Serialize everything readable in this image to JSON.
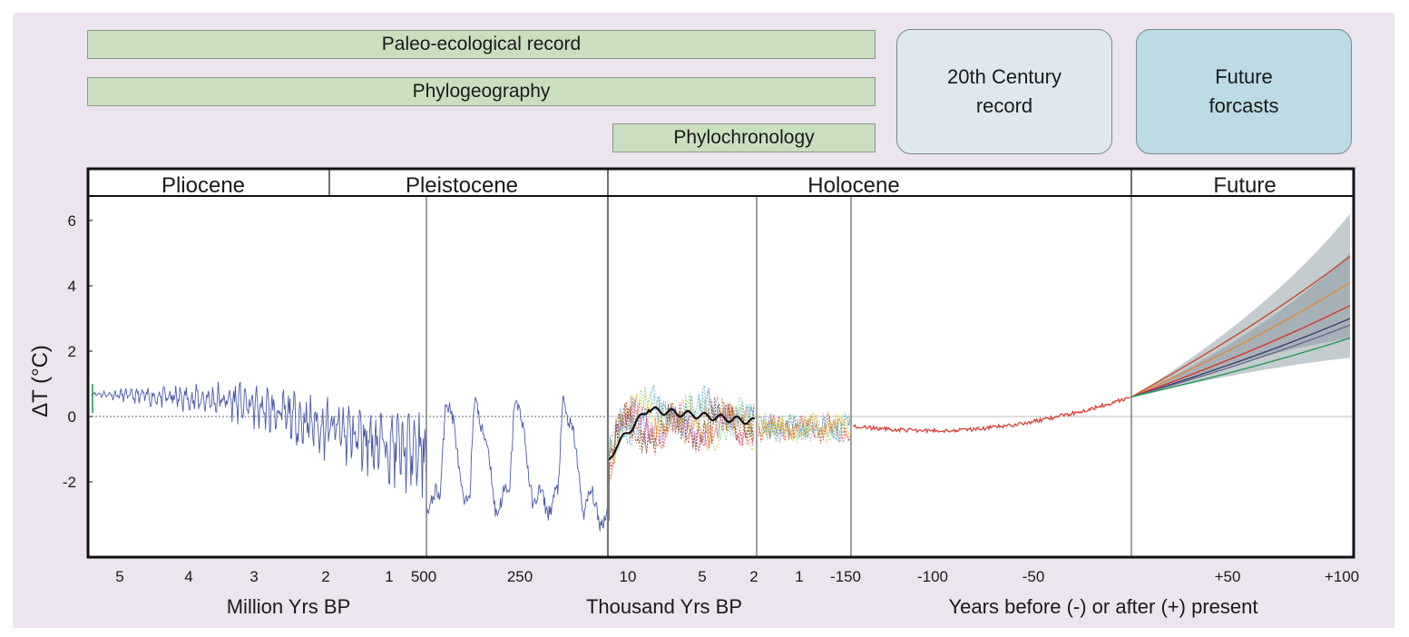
{
  "colors": {
    "panel_bg": "#ece4ee",
    "bar_fill": "#c9dfc0",
    "box20_fill": "#dde8ef",
    "boxfuture_fill": "#bcdbe3",
    "pliocene_series": "#4a5aa8",
    "holocene_recent": "#d9342b",
    "band_outer": "#c4ccd0",
    "band_inner": "#a6b1b7"
  },
  "methods": {
    "paleo": "Paleo-ecological record",
    "phylogeo": "Phylogeography",
    "phylochron": "Phylochronology"
  },
  "records": {
    "century": [
      "20th Century",
      "record"
    ],
    "future": [
      "Future",
      "forcasts"
    ]
  },
  "chart_data": {
    "type": "line",
    "ylabel": "ΔT (°C)",
    "ylim": [
      -4.5,
      6.5
    ],
    "yticks": [
      6,
      4,
      2,
      0,
      -2
    ],
    "epochs": [
      "Pliocene",
      "Pleistocene",
      "Holocene",
      "Future"
    ],
    "segments": [
      {
        "unit": "Million Yrs BP",
        "ticks": [
          "5",
          "4",
          "3",
          "2",
          "1"
        ]
      },
      {
        "unit": "",
        "ticks": [
          "500",
          "250"
        ]
      },
      {
        "unit": "Thousand Yrs BP",
        "ticks": [
          "10",
          "5",
          "2",
          "1"
        ]
      },
      {
        "unit": "Years before (-) or after (+) present",
        "ticks": [
          "-150",
          "-100",
          "-50",
          "+50",
          "+100"
        ]
      }
    ],
    "future_band": {
      "x": [
        0,
        100
      ],
      "outer_upper": [
        0.6,
        6.2
      ],
      "outer_lower": [
        0.6,
        1.8
      ],
      "inner_upper": [
        0.6,
        5.0
      ],
      "inner_lower": [
        0.6,
        2.4
      ]
    },
    "future_scenarios": [
      {
        "color": "#c84a2c",
        "end": 4.9
      },
      {
        "color": "#e08a3a",
        "end": 4.1
      },
      {
        "color": "#d9342b",
        "end": 3.4
      },
      {
        "color": "#3a3f6a",
        "end": 3.0
      },
      {
        "color": "#6a6a8a",
        "end": 2.8
      },
      {
        "color": "#2a9a5a",
        "end": 2.4
      }
    ]
  }
}
